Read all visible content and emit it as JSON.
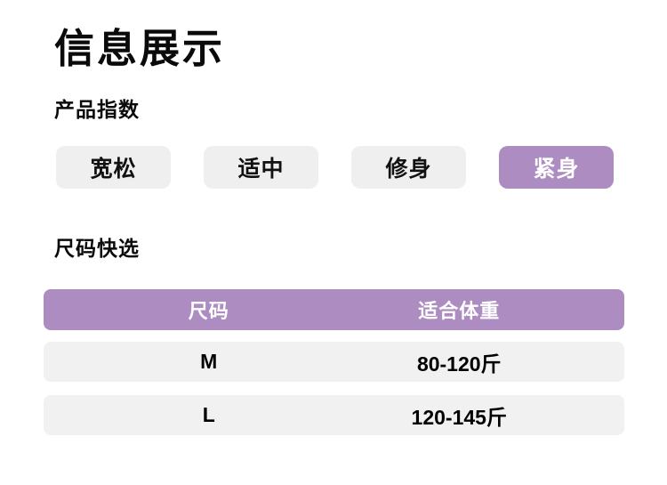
{
  "page": {
    "title": "信息展示",
    "product_index": {
      "heading": "产品指数",
      "options": [
        {
          "label": "宽松",
          "selected": false
        },
        {
          "label": "适中",
          "selected": false
        },
        {
          "label": "修身",
          "selected": false
        },
        {
          "label": "紧身",
          "selected": true
        }
      ]
    },
    "size_select": {
      "heading": "尺码快选",
      "table": {
        "headers": [
          "尺码",
          "适合体重"
        ],
        "rows": [
          [
            "M",
            "80-120斤"
          ],
          [
            "L",
            "120-145斤"
          ]
        ]
      }
    }
  },
  "colors": {
    "accent_purple": "#ac8cc1",
    "chip_gray": "#efefef",
    "row_gray": "#f1f1f1",
    "text_black": "#0a0a0a",
    "text_white": "#ffffff",
    "background": "#ffffff"
  }
}
